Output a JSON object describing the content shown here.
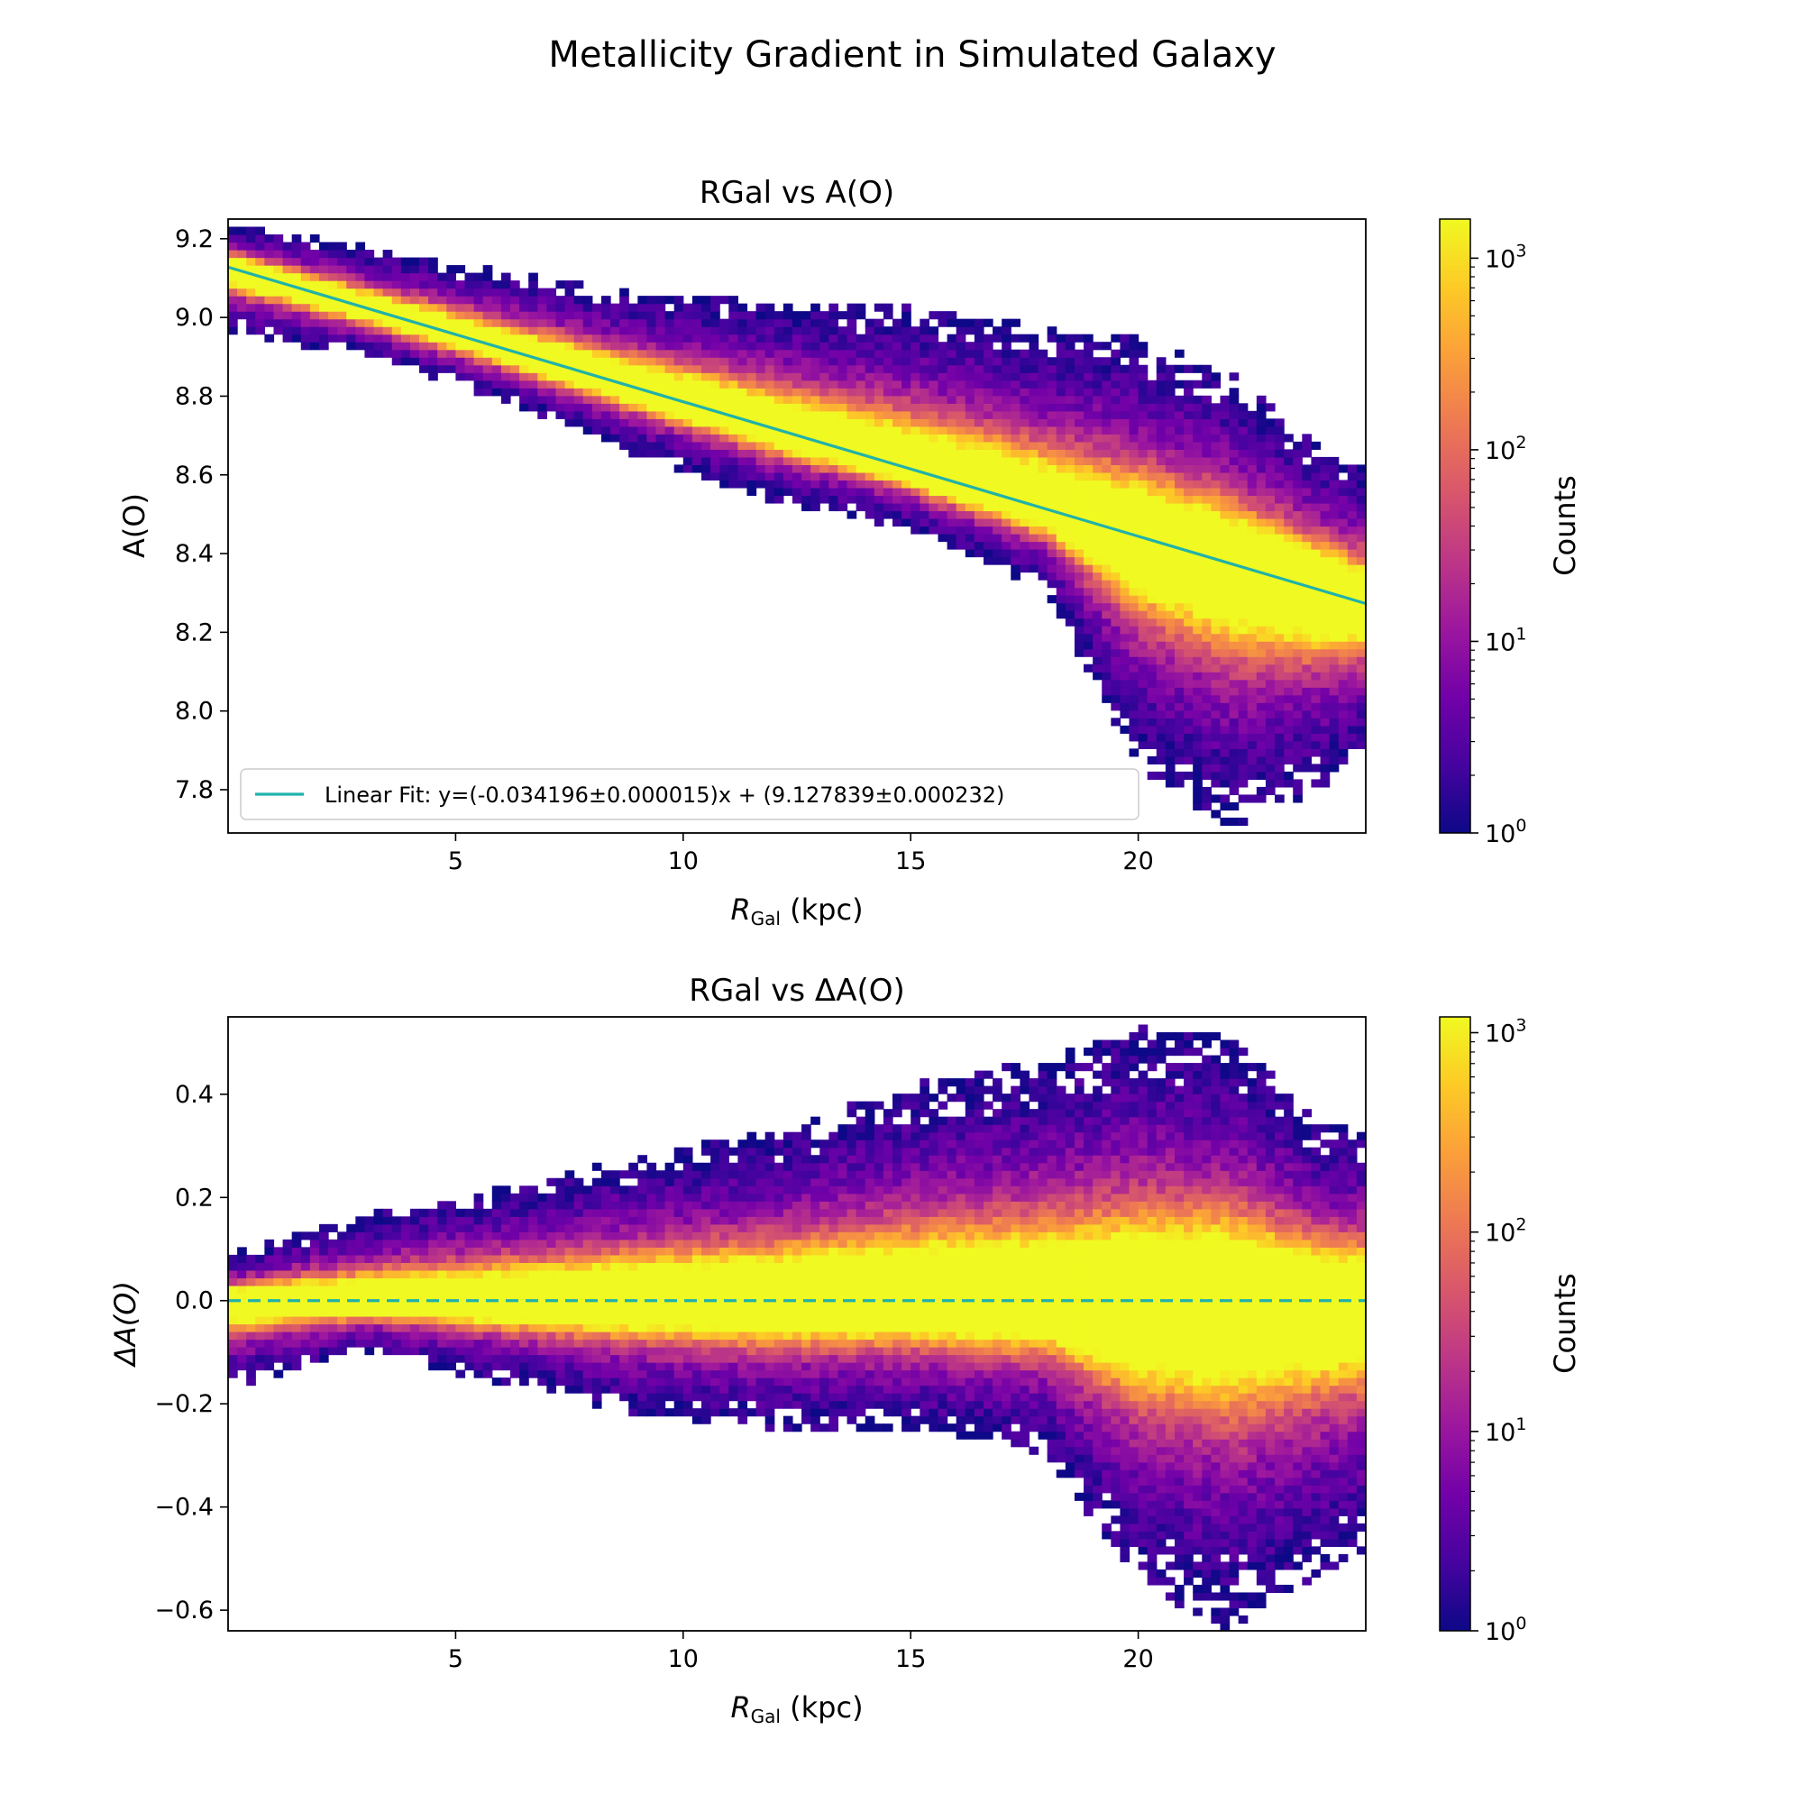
{
  "figure": {
    "suptitle": "Metallicity Gradient in Simulated Galaxy"
  },
  "colormap": {
    "name": "plasma",
    "stops": [
      "#0d0887",
      "#46039f",
      "#7201a8",
      "#9c179e",
      "#bd3786",
      "#d8576b",
      "#ed7953",
      "#fb9f3a",
      "#fdca26",
      "#f0f921"
    ]
  },
  "fit_color": "#20b2aa",
  "chart_data": [
    {
      "type": "heatmap",
      "title": "RGal vs A(O)",
      "xlabel_main": "R",
      "xlabel_sub": "Gal",
      "xlabel_unit": " (kpc)",
      "ylabel": "A(O)",
      "xlim": [
        0,
        25
      ],
      "ylim": [
        7.69,
        9.25
      ],
      "xticks": [
        5,
        10,
        15,
        20
      ],
      "xtick_labels": [
        "5",
        "10",
        "15",
        "20"
      ],
      "yticks": [
        7.8,
        8.0,
        8.2,
        8.4,
        8.6,
        8.8,
        9.0,
        9.2
      ],
      "ytick_labels": [
        "7.8",
        "8.0",
        "8.2",
        "8.4",
        "8.6",
        "8.8",
        "9.0",
        "9.2"
      ],
      "colorbar": {
        "label": "Counts",
        "scale": "log",
        "range": [
          1,
          1600
        ],
        "ticks": [
          1,
          10,
          100,
          1000
        ],
        "tick_bases": [
          "10",
          "10",
          "10",
          "10"
        ],
        "tick_exps": [
          "0",
          "1",
          "2",
          "3"
        ]
      },
      "fit_line": {
        "style": "solid",
        "slope": -0.034196,
        "intercept": 9.127839,
        "legend": "Linear Fit: y=(-0.034196±0.000015)x + (9.127839±0.000232)"
      },
      "density_model": {
        "center_intercept": 9.127839,
        "center_slope": -0.034196,
        "upper_edge": [
          [
            0,
            9.24
          ],
          [
            3,
            9.18
          ],
          [
            6,
            9.12
          ],
          [
            9,
            9.06
          ],
          [
            12,
            9.04
          ],
          [
            15,
            9.03
          ],
          [
            18,
            8.98
          ],
          [
            20,
            8.95
          ],
          [
            22,
            8.86
          ],
          [
            24,
            8.68
          ],
          [
            25,
            8.62
          ]
        ],
        "lower_edge": [
          [
            0,
            8.96
          ],
          [
            3,
            8.9
          ],
          [
            6,
            8.79
          ],
          [
            9,
            8.65
          ],
          [
            12,
            8.53
          ],
          [
            15,
            8.46
          ],
          [
            18,
            8.3
          ],
          [
            20,
            7.86
          ],
          [
            22,
            7.7
          ],
          [
            24,
            7.8
          ],
          [
            25,
            7.9
          ]
        ],
        "ridges": [
          [
            0,
            9.13,
            0.025,
            2.9
          ],
          [
            0,
            8.7,
            0.03,
            0
          ],
          [
            25,
            8.28,
            0.05,
            2.0
          ],
          [
            15,
            8.58,
            0.06,
            2.2
          ],
          [
            20,
            8.52,
            0.08,
            0.3
          ]
        ],
        "peak_log": 3.1
      }
    },
    {
      "type": "heatmap",
      "title": "RGal vs ΔA(O)",
      "xlabel_main": "R",
      "xlabel_sub": "Gal",
      "xlabel_unit": " (kpc)",
      "ylabel": "ΔA(O)",
      "xlim": [
        0,
        25
      ],
      "ylim": [
        -0.64,
        0.55
      ],
      "xticks": [
        5,
        10,
        15,
        20
      ],
      "xtick_labels": [
        "5",
        "10",
        "15",
        "20"
      ],
      "yticks": [
        -0.6,
        -0.4,
        -0.2,
        0.0,
        0.2,
        0.4
      ],
      "ytick_labels": [
        "−0.6",
        "−0.4",
        "−0.2",
        "0.0",
        "0.2",
        "0.4"
      ],
      "colorbar": {
        "label": "Counts",
        "scale": "log",
        "range": [
          1,
          1200
        ],
        "ticks": [
          1,
          10,
          100,
          1000
        ],
        "tick_bases": [
          "10",
          "10",
          "10",
          "10"
        ],
        "tick_exps": [
          "0",
          "1",
          "2",
          "3"
        ]
      },
      "fit_line": {
        "style": "dashed",
        "slope": 0,
        "intercept": 0
      },
      "density_model": {
        "center_intercept": 0.0,
        "center_slope": 0.0,
        "upper_edge": [
          [
            0,
            0.09
          ],
          [
            3,
            0.17
          ],
          [
            6,
            0.22
          ],
          [
            9,
            0.28
          ],
          [
            12,
            0.33
          ],
          [
            15,
            0.42
          ],
          [
            18,
            0.47
          ],
          [
            20,
            0.53
          ],
          [
            22,
            0.52
          ],
          [
            24,
            0.35
          ],
          [
            25,
            0.33
          ]
        ],
        "lower_edge": [
          [
            0,
            -0.17
          ],
          [
            3,
            -0.1
          ],
          [
            6,
            -0.16
          ],
          [
            9,
            -0.22
          ],
          [
            12,
            -0.25
          ],
          [
            15,
            -0.25
          ],
          [
            18,
            -0.3
          ],
          [
            20,
            -0.55
          ],
          [
            22,
            -0.64
          ],
          [
            24,
            -0.53
          ],
          [
            25,
            -0.48
          ]
        ],
        "ridges": [
          [
            0,
            0.0,
            0.03,
            2.9
          ],
          [
            0,
            -0.04,
            0.005,
            0
          ],
          [
            25,
            0.06,
            0.05,
            2.5
          ],
          [
            15,
            0.0,
            0.05,
            2.5
          ],
          [
            20,
            0.08,
            0.07,
            0.3
          ]
        ],
        "peak_log": 3.1
      }
    }
  ]
}
